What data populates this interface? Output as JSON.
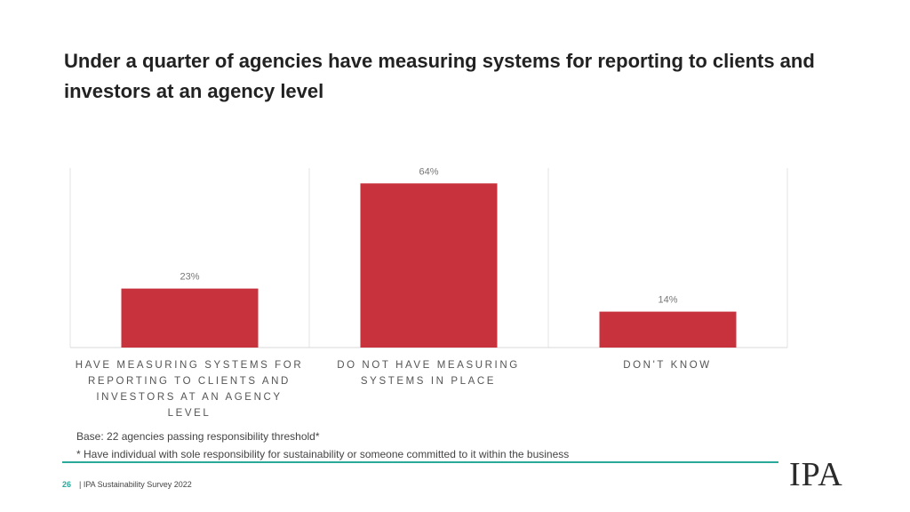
{
  "title": "Under a quarter of agencies have measuring systems for reporting to clients and investors at an agency level",
  "chart_data": {
    "type": "bar",
    "categories": [
      "HAVE MEASURING SYSTEMS FOR REPORTING TO CLIENTS AND INVESTORS AT AN AGENCY LEVEL",
      "DO NOT HAVE MEASURING SYSTEMS IN PLACE",
      "DON'T KNOW"
    ],
    "values": [
      23,
      64,
      14
    ],
    "data_labels": [
      "23%",
      "64%",
      "14%"
    ],
    "ylim": [
      0,
      70
    ],
    "grid": false,
    "legend": "none",
    "bar_color": "#c8323c"
  },
  "notes": {
    "base": "Base: 22 agencies passing responsibility threshold*",
    "footnote": "* Have individual with sole responsibility for sustainability or someone committed to it within the business"
  },
  "footer": {
    "page_number": "26",
    "text": "| IPA Sustainability Survey 2022",
    "logo": "IPA"
  },
  "colors": {
    "accent": "#2aa99b",
    "bar": "#c8323c"
  }
}
